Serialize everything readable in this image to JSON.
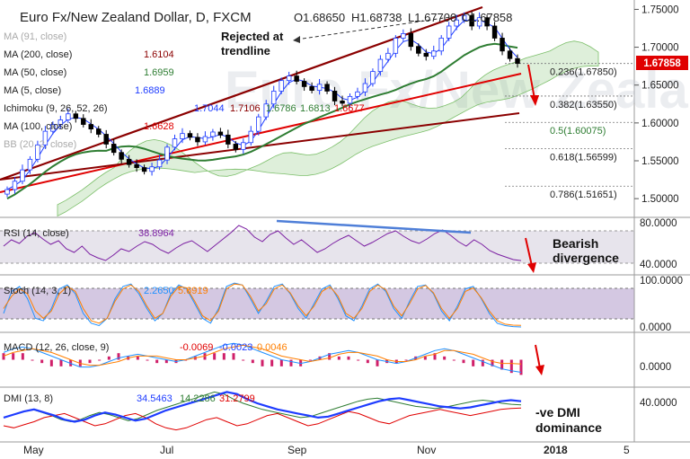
{
  "colors": {
    "price_up": "#1e3cff",
    "price_dn": "#000000",
    "ma50": "#2e7d32",
    "ma100": "#e00000",
    "ma200": "#8b0000",
    "ma5": "#1e3cff",
    "cloud": "#7cbf6a",
    "rsi": "#7b1fa2",
    "annot_arrow": "#e00000",
    "divergence": "#4f7fd8",
    "dmi_plus": "#1e3cff",
    "dmi_minus": "#e00000",
    "adx": "#2e7d32",
    "macd": "#1e90ff",
    "signal": "#ff7f00",
    "hist": "#d0206a",
    "price_label_bg": "#e00000"
  },
  "chart_data": {
    "type": "candlestick",
    "title": "Euro Fx/New Zealand Dollar, D, FXCM",
    "header": {
      "open": "O1.68650",
      "high": "H1.68738",
      "low": "L1.67700",
      "close": "C1.67858"
    },
    "price": {
      "current": "1.67858",
      "ylim": [
        1.48,
        1.76
      ],
      "ticks": [
        "1.75000",
        "1.70000",
        "1.65000",
        "1.60000",
        "1.55000",
        "1.50000"
      ],
      "tick_values": [
        1.75,
        1.7,
        1.65,
        1.6,
        1.55,
        1.5
      ],
      "close_series": [
        1.512,
        1.523,
        1.538,
        1.552,
        1.571,
        1.589,
        1.598,
        1.604,
        1.612,
        1.606,
        1.598,
        1.592,
        1.585,
        1.572,
        1.561,
        1.552,
        1.545,
        1.541,
        1.536,
        1.542,
        1.551,
        1.568,
        1.579,
        1.586,
        1.581,
        1.575,
        1.582,
        1.588,
        1.584,
        1.572,
        1.565,
        1.574,
        1.589,
        1.608,
        1.625,
        1.642,
        1.656,
        1.662,
        1.655,
        1.648,
        1.643,
        1.651,
        1.642,
        1.629,
        1.626,
        1.635,
        1.641,
        1.652,
        1.668,
        1.684,
        1.692,
        1.712,
        1.718,
        1.701,
        1.692,
        1.688,
        1.695,
        1.712,
        1.728,
        1.736,
        1.742,
        1.728,
        1.739,
        1.728,
        1.712,
        1.695,
        1.685,
        1.67858
      ]
    },
    "fib_levels": [
      {
        "label": "0.236(1.67850)",
        "value": 1.6785
      },
      {
        "label": "0.382(1.63550)",
        "value": 1.6355
      },
      {
        "label": "0.5(1.60075)",
        "value": 1.60075
      },
      {
        "label": "0.618(1.56599)",
        "value": 1.56599
      },
      {
        "label": "0.786(1.51651)",
        "value": 1.51651
      }
    ],
    "legend": [
      {
        "name": "MA (91, close)",
        "value": ""
      },
      {
        "name": "MA (200, close)",
        "value": "1.6104"
      },
      {
        "name": "MA (50, close)",
        "value": "1.6959"
      },
      {
        "name": "MA (5, close)",
        "value": "1.6889"
      },
      {
        "name": "Ichimoku (9, 26, 52, 26)",
        "values": [
          "1.7044",
          "1.7106",
          "1.6786",
          "1.6813",
          "1.6677"
        ]
      },
      {
        "name": "MA (100, close)",
        "value": "1.6628"
      },
      {
        "name": "BB (20, 2, close)",
        "value": ""
      }
    ],
    "annotations": {
      "trendline_note": [
        "Rejected at",
        "trendline"
      ],
      "rsi_note": [
        "Bearish",
        "divergence"
      ],
      "dmi_note": [
        "-ve DMI",
        "dominance"
      ]
    },
    "x_labels": [
      "May",
      "Jul",
      "Sep",
      "Nov",
      "2018",
      "5"
    ],
    "rsi": {
      "label": "RSI (14, close)",
      "value": "38.8964",
      "ticks": [
        "80.0000",
        "40.0000"
      ],
      "tick_values": [
        80,
        40
      ],
      "ylim": [
        25,
        85
      ],
      "series": [
        55,
        62,
        58,
        66,
        70,
        63,
        57,
        61,
        52,
        48,
        55,
        46,
        42,
        39,
        45,
        52,
        49,
        55,
        60,
        57,
        51,
        47,
        53,
        58,
        61,
        55,
        49,
        56,
        63,
        70,
        78,
        74,
        65,
        60,
        68,
        72,
        64,
        57,
        62,
        55,
        48,
        52,
        58,
        63,
        67,
        61,
        55,
        59,
        64,
        69,
        72,
        66,
        61,
        58,
        63,
        69,
        73,
        67,
        60,
        55,
        62,
        57,
        50,
        46,
        43,
        40,
        38.9
      ]
    },
    "stoch": {
      "label": "Stoch (14, 3, 1)",
      "values": [
        "2.2650",
        "5.6919"
      ],
      "ticks": [
        "100.0000",
        "0.0000"
      ],
      "tick_values": [
        100,
        0
      ],
      "ylim": [
        -5,
        105
      ],
      "k_series": [
        30,
        75,
        85,
        60,
        20,
        15,
        40,
        80,
        88,
        70,
        30,
        10,
        5,
        20,
        60,
        85,
        90,
        70,
        40,
        15,
        30,
        70,
        88,
        80,
        50,
        20,
        10,
        40,
        85,
        92,
        88,
        60,
        30,
        55,
        85,
        90,
        70,
        40,
        20,
        50,
        80,
        88,
        60,
        25,
        15,
        45,
        80,
        90,
        75,
        40,
        20,
        55,
        85,
        88,
        70,
        35,
        15,
        45,
        80,
        85,
        60,
        30,
        10,
        5,
        3,
        2.265
      ],
      "d_series": [
        40,
        65,
        80,
        70,
        35,
        20,
        35,
        70,
        85,
        75,
        40,
        15,
        10,
        20,
        55,
        80,
        88,
        75,
        45,
        20,
        30,
        65,
        85,
        82,
        55,
        25,
        15,
        35,
        80,
        90,
        88,
        65,
        35,
        50,
        80,
        88,
        72,
        45,
        25,
        45,
        75,
        85,
        65,
        30,
        20,
        40,
        75,
        88,
        78,
        45,
        25,
        50,
        80,
        87,
        72,
        40,
        20,
        40,
        75,
        82,
        62,
        35,
        15,
        8,
        6,
        5.69
      ]
    },
    "macd": {
      "label": "MACD (12, 26, close, 9)",
      "values": [
        "-0.0069",
        "-0.0023",
        "0.0046"
      ],
      "ticks": [
        "0.0000"
      ],
      "tick_values": [
        0
      ],
      "ylim": [
        -0.014,
        0.014
      ],
      "macd_series": [
        0.004,
        0.006,
        0.007,
        0.006,
        0.004,
        0.002,
        0.0,
        -0.002,
        -0.004,
        -0.004,
        -0.003,
        -0.001,
        0.001,
        0.002,
        0.003,
        0.002,
        0.001,
        0.0,
        -0.001,
        0.0,
        0.002,
        0.004,
        0.006,
        0.008,
        0.009,
        0.008,
        0.006,
        0.004,
        0.002,
        0.0,
        -0.001,
        -0.002,
        -0.001,
        0.001,
        0.003,
        0.004,
        0.005,
        0.004,
        0.002,
        0.0,
        -0.001,
        -0.002,
        -0.001,
        0.001,
        0.003,
        0.005,
        0.006,
        0.005,
        0.003,
        0.001,
        -0.001,
        -0.003,
        -0.005,
        -0.006,
        -0.0069
      ],
      "signal_series": [
        0.002,
        0.004,
        0.005,
        0.006,
        0.005,
        0.004,
        0.002,
        0.0,
        -0.002,
        -0.003,
        -0.003,
        -0.002,
        -0.001,
        0.001,
        0.002,
        0.002,
        0.002,
        0.001,
        0.0,
        0.0,
        0.001,
        0.002,
        0.004,
        0.006,
        0.007,
        0.008,
        0.007,
        0.006,
        0.004,
        0.002,
        0.001,
        0.0,
        -0.001,
        0.0,
        0.001,
        0.003,
        0.004,
        0.004,
        0.003,
        0.002,
        0.0,
        -0.001,
        -0.001,
        0.0,
        0.002,
        0.003,
        0.005,
        0.005,
        0.004,
        0.003,
        0.001,
        -0.001,
        -0.002,
        -0.002,
        -0.0023
      ]
    },
    "dmi": {
      "label": "DMI (13, 8)",
      "values": [
        "34.5463",
        "14.2286",
        "31.2799"
      ],
      "ticks": [
        "40.0000"
      ],
      "tick_values": [
        40
      ],
      "ylim": [
        0,
        50
      ],
      "adx_series": [
        22,
        25,
        28,
        30,
        27,
        24,
        20,
        18,
        20,
        24,
        27,
        25,
        22,
        19,
        21,
        25,
        29,
        32,
        35,
        38,
        41,
        44,
        47,
        45,
        40,
        36,
        33,
        30,
        28,
        26,
        24,
        22,
        23,
        26,
        29,
        32,
        35,
        38,
        40,
        41,
        39,
        37,
        35,
        33,
        32,
        31,
        32,
        34,
        36,
        38,
        39,
        38,
        36,
        35,
        34.5
      ],
      "plus_series": [
        30,
        35,
        32,
        28,
        24,
        20,
        18,
        22,
        26,
        30,
        28,
        24,
        20,
        18,
        22,
        28,
        32,
        35,
        33,
        30,
        26,
        24,
        28,
        32,
        30,
        26,
        22,
        20,
        24,
        28,
        32,
        30,
        26,
        22,
        18,
        20,
        24,
        28,
        30,
        26,
        22,
        20,
        18,
        16,
        18,
        20,
        22,
        20,
        18,
        16,
        15,
        14.2
      ],
      "minus_series": [
        14,
        12,
        15,
        18,
        22,
        24,
        26,
        22,
        18,
        14,
        16,
        20,
        24,
        26,
        22,
        16,
        12,
        10,
        12,
        16,
        20,
        22,
        18,
        14,
        16,
        20,
        24,
        26,
        22,
        18,
        14,
        16,
        20,
        24,
        28,
        26,
        22,
        18,
        16,
        20,
        24,
        26,
        28,
        30,
        28,
        26,
        24,
        26,
        28,
        30,
        31,
        31.3
      ]
    }
  }
}
